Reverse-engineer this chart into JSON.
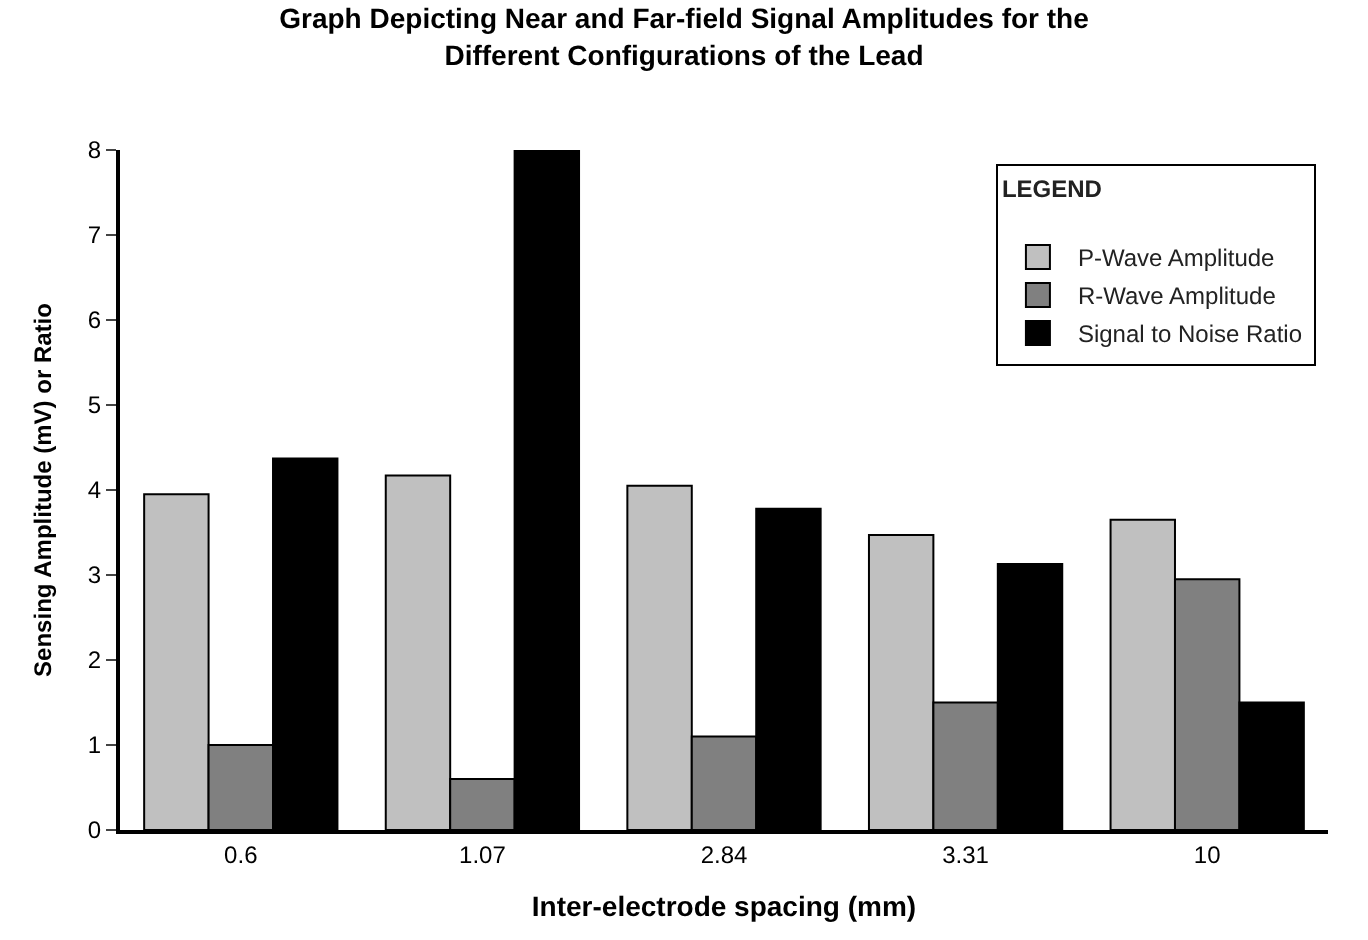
{
  "chart_data": {
    "type": "bar",
    "title": "Graph Depicting Near and Far-field Signal Amplitudes for the\nDifferent Configurations of the Lead",
    "xlabel": "Inter-electrode spacing (mm)",
    "ylabel": "Sensing Amplitude (mV) or Ratio",
    "legend_title": "LEGEND",
    "categories": [
      "0.6",
      "1.07",
      "2.84",
      "3.31",
      "10"
    ],
    "series": [
      {
        "name": "P-Wave Amplitude",
        "color": "#c0c0c0",
        "values": [
          3.95,
          4.17,
          4.05,
          3.47,
          3.65
        ]
      },
      {
        "name": "R-Wave Amplitude",
        "color": "#808080",
        "values": [
          1.0,
          0.6,
          1.1,
          1.5,
          2.95
        ]
      },
      {
        "name": "Signal to Noise Ratio",
        "color": "#000000",
        "values": [
          4.37,
          8.0,
          3.78,
          3.13,
          1.5
        ]
      }
    ],
    "ylim": [
      0,
      8
    ],
    "yticks": [
      0,
      1,
      2,
      3,
      4,
      5,
      6,
      7,
      8
    ],
    "legend": "top right"
  }
}
